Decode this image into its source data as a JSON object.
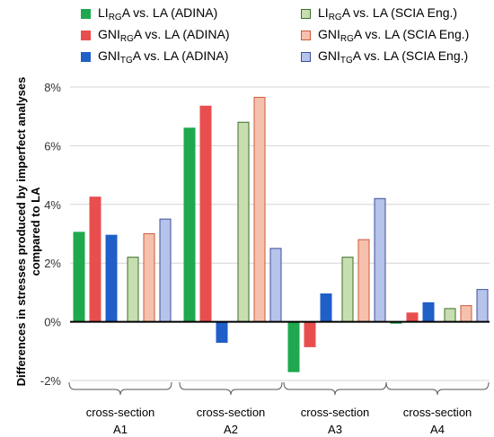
{
  "chart_data": {
    "type": "bar",
    "title": "",
    "xlabel": "",
    "ylabel": "Differences in stresses produced by imperfect analyses compared to LA",
    "ylim": [
      -2,
      8
    ],
    "yticks": [
      -2,
      0,
      2,
      4,
      6,
      8
    ],
    "ytick_suffix": "%",
    "grid": true,
    "legend_position": "top",
    "category_prefix": "cross-section",
    "categories": [
      "A1",
      "A2",
      "A3",
      "A4"
    ],
    "series": [
      {
        "name": "LIRGA vs. LA (ADINA)",
        "label_parts": {
          "base": "LI",
          "sub": "RG",
          "rest": "A  vs.  LA  (ADINA)"
        },
        "color": "#1fa84e",
        "edge": "#1fa84e",
        "values": [
          3.05,
          6.6,
          -1.7,
          -0.05
        ]
      },
      {
        "name": "GNIRGA vs. LA (ADINA)",
        "label_parts": {
          "base": "GNI",
          "sub": "RG",
          "rest": "A  vs.  LA  (ADINA)"
        },
        "color": "#e94e4e",
        "edge": "#e94e4e",
        "values": [
          4.25,
          7.35,
          -0.85,
          0.3
        ]
      },
      {
        "name": "GNITGA vs. LA (ADINA)",
        "label_parts": {
          "base": "GNI",
          "sub": "TG",
          "rest": "A  vs.  LA  (ADINA)"
        },
        "color": "#1f5fc7",
        "edge": "#1f5fc7",
        "values": [
          2.95,
          -0.7,
          0.95,
          0.65
        ]
      },
      {
        "name": "LIRGA vs. LA (SCIA Eng.)",
        "label_parts": {
          "base": "LI",
          "sub": "RG",
          "rest": "A  vs.  LA  (SCIA Eng.)"
        },
        "color": "#c6deb0",
        "edge": "#3c6e2a",
        "values": [
          2.2,
          6.8,
          2.2,
          0.45
        ]
      },
      {
        "name": "GNIRGA vs. LA (SCIA Eng.)",
        "label_parts": {
          "base": "GNI",
          "sub": "RG",
          "rest": "A  vs.  LA  (SCIA Eng.)"
        },
        "color": "#f6c1ac",
        "edge": "#cc5a3c",
        "values": [
          3.0,
          7.65,
          2.8,
          0.55
        ]
      },
      {
        "name": "GNITGA vs. LA (SCIA Eng.)",
        "label_parts": {
          "base": "GNI",
          "sub": "TG",
          "rest": "A  vs.  LA  (SCIA Eng.)"
        },
        "color": "#b6c3ea",
        "edge": "#3d4f9a",
        "values": [
          3.5,
          2.5,
          4.2,
          1.1
        ]
      }
    ]
  }
}
